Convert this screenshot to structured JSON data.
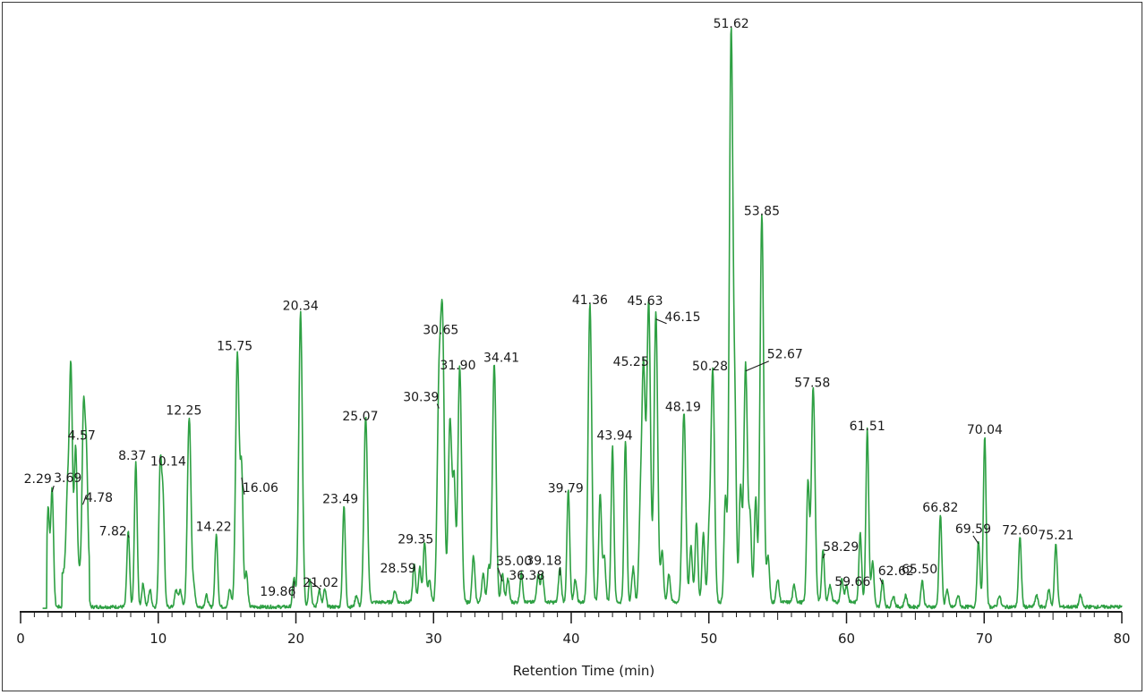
{
  "chart_data": {
    "type": "line",
    "title": "",
    "xlabel": "Retention Time (min)",
    "ylabel": "",
    "xlim": [
      0,
      80
    ],
    "ylim": [
      0,
      100
    ],
    "grid": false,
    "x_ticks": [
      0,
      10,
      20,
      30,
      40,
      50,
      60,
      70,
      80
    ],
    "x_tick_labels": [
      "0",
      "10",
      "20",
      "30",
      "40",
      "50",
      "60",
      "70",
      "80"
    ],
    "series_color": "#2ea043",
    "peaks": [
      {
        "rt": 2.29,
        "label": "2.29",
        "h": 20.5
      },
      {
        "rt": 3.69,
        "label": "3.69",
        "h": 21
      },
      {
        "rt": 4.57,
        "label": "4.57",
        "h": 28
      },
      {
        "rt": 4.78,
        "label": "4.78",
        "h": 20
      },
      {
        "rt": 7.82,
        "label": "7.82",
        "h": 13
      },
      {
        "rt": 8.37,
        "label": "8.37",
        "h": 25
      },
      {
        "rt": 10.14,
        "label": "10.14",
        "h": 24
      },
      {
        "rt": 12.25,
        "label": "12.25",
        "h": 33
      },
      {
        "rt": 14.22,
        "label": "14.22",
        "h": 12.5
      },
      {
        "rt": 15.75,
        "label": "15.75",
        "h": 44
      },
      {
        "rt": 16.06,
        "label": "16.06",
        "h": 23
      },
      {
        "rt": 19.86,
        "label": "19.86",
        "h": 5
      },
      {
        "rt": 20.34,
        "label": "20.34",
        "h": 51
      },
      {
        "rt": 21.02,
        "label": "21.02",
        "h": 5
      },
      {
        "rt": 23.49,
        "label": "23.49",
        "h": 17.5
      },
      {
        "rt": 25.07,
        "label": "25.07",
        "h": 32
      },
      {
        "rt": 28.59,
        "label": "28.59",
        "h": 6.5
      },
      {
        "rt": 29.35,
        "label": "29.35",
        "h": 10.5
      },
      {
        "rt": 30.39,
        "label": "30.39",
        "h": 35
      },
      {
        "rt": 30.65,
        "label": "30.65",
        "h": 46.5
      },
      {
        "rt": 31.9,
        "label": "31.90",
        "h": 41
      },
      {
        "rt": 34.41,
        "label": "34.41",
        "h": 41.5
      },
      {
        "rt": 35.0,
        "label": "35.00",
        "h": 5
      },
      {
        "rt": 36.38,
        "label": "36.38",
        "h": 5
      },
      {
        "rt": 39.18,
        "label": "39.18",
        "h": 6
      },
      {
        "rt": 39.79,
        "label": "39.79",
        "h": 19.5
      },
      {
        "rt": 41.36,
        "label": "41.36",
        "h": 52
      },
      {
        "rt": 43.94,
        "label": "43.94",
        "h": 28
      },
      {
        "rt": 45.25,
        "label": "45.25",
        "h": 41
      },
      {
        "rt": 45.63,
        "label": "45.63",
        "h": 52
      },
      {
        "rt": 46.15,
        "label": "46.15",
        "h": 50.5
      },
      {
        "rt": 48.19,
        "label": "48.19",
        "h": 33
      },
      {
        "rt": 50.28,
        "label": "50.28",
        "h": 40.5
      },
      {
        "rt": 51.62,
        "label": "51.62",
        "h": 100
      },
      {
        "rt": 52.67,
        "label": "52.67",
        "h": 41.5
      },
      {
        "rt": 53.85,
        "label": "53.85",
        "h": 67.5
      },
      {
        "rt": 57.58,
        "label": "57.58",
        "h": 37.5
      },
      {
        "rt": 58.29,
        "label": "58.29",
        "h": 9
      },
      {
        "rt": 59.66,
        "label": "59.66",
        "h": 4
      },
      {
        "rt": 61.51,
        "label": "61.51",
        "h": 30
      },
      {
        "rt": 62.62,
        "label": "62.62",
        "h": 4.5
      },
      {
        "rt": 65.5,
        "label": "65.50",
        "h": 4.5
      },
      {
        "rt": 66.82,
        "label": "66.82",
        "h": 16
      },
      {
        "rt": 69.59,
        "label": "69.59",
        "h": 11.5
      },
      {
        "rt": 70.04,
        "label": "70.04",
        "h": 29.5
      },
      {
        "rt": 72.6,
        "label": "72.60",
        "h": 12
      },
      {
        "rt": 75.21,
        "label": "75.21",
        "h": 11
      }
    ],
    "minor_peaks": [
      [
        2.0,
        17
      ],
      [
        3.4,
        13
      ],
      [
        3.6,
        19
      ],
      [
        4.0,
        22
      ],
      [
        8.9,
        4
      ],
      [
        9.4,
        3
      ],
      [
        10.35,
        18
      ],
      [
        11.3,
        3
      ],
      [
        11.6,
        3
      ],
      [
        12.6,
        3
      ],
      [
        13.5,
        2
      ],
      [
        15.2,
        3
      ],
      [
        16.4,
        6
      ],
      [
        21.7,
        3
      ],
      [
        22.1,
        3
      ],
      [
        24.4,
        2
      ],
      [
        27.2,
        2
      ],
      [
        29.0,
        6
      ],
      [
        29.7,
        4
      ],
      [
        31.2,
        32
      ],
      [
        31.5,
        20
      ],
      [
        32.9,
        8
      ],
      [
        33.6,
        5
      ],
      [
        34.0,
        6
      ],
      [
        35.4,
        4
      ],
      [
        37.6,
        5
      ],
      [
        37.9,
        5
      ],
      [
        40.3,
        4
      ],
      [
        42.1,
        19
      ],
      [
        42.4,
        8
      ],
      [
        43.0,
        27
      ],
      [
        44.5,
        6
      ],
      [
        45.0,
        12
      ],
      [
        46.6,
        9
      ],
      [
        47.1,
        5
      ],
      [
        48.7,
        10
      ],
      [
        49.1,
        14
      ],
      [
        49.6,
        12
      ],
      [
        50.0,
        10
      ],
      [
        51.2,
        18
      ],
      [
        51.9,
        28
      ],
      [
        52.3,
        20
      ],
      [
        53.0,
        14
      ],
      [
        53.4,
        18
      ],
      [
        54.3,
        8
      ],
      [
        55.0,
        4
      ],
      [
        56.2,
        3
      ],
      [
        57.2,
        21
      ],
      [
        58.8,
        3
      ],
      [
        60.0,
        3
      ],
      [
        61.0,
        12
      ],
      [
        61.9,
        7
      ],
      [
        63.4,
        2
      ],
      [
        64.3,
        2
      ],
      [
        67.3,
        3
      ],
      [
        68.1,
        2
      ],
      [
        71.1,
        2
      ],
      [
        73.8,
        2
      ],
      [
        74.7,
        3
      ],
      [
        77.0,
        2
      ]
    ]
  }
}
